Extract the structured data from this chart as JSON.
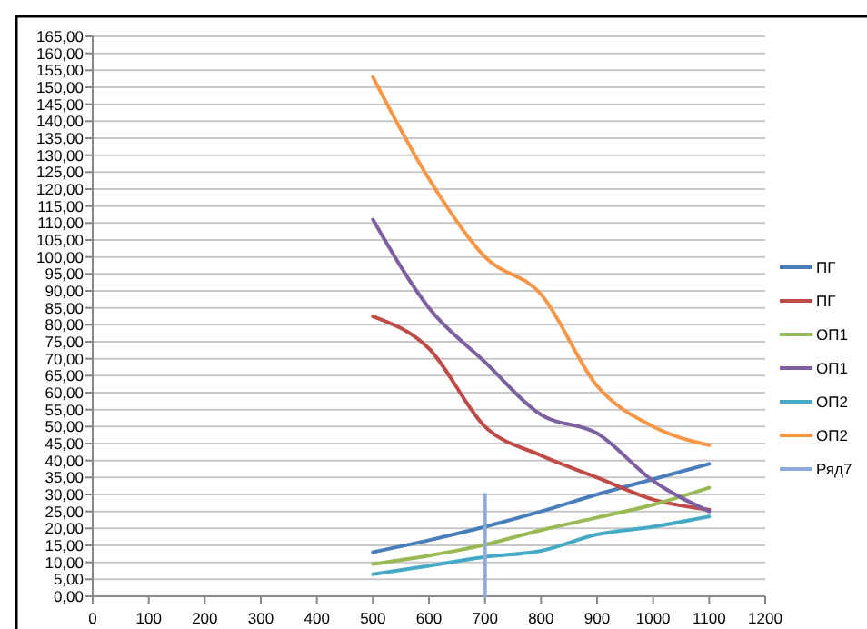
{
  "chart_data": {
    "type": "line",
    "x": [
      500,
      600,
      700,
      800,
      900,
      1000,
      1100
    ],
    "series": [
      {
        "name": "ПГ",
        "color": "#4a7ebb",
        "values": [
          13,
          16.5,
          20.5,
          25,
          30,
          34.5,
          39
        ]
      },
      {
        "name": "ПГ",
        "color": "#be4b48",
        "values": [
          82.5,
          73,
          50,
          41.5,
          35,
          28.5,
          25.5
        ]
      },
      {
        "name": "ОП1",
        "color": "#98b954",
        "values": [
          9.5,
          12,
          15.2,
          19.5,
          23.2,
          27,
          32
        ]
      },
      {
        "name": "ОП1",
        "color": "#7d60a0",
        "values": [
          111,
          85,
          69,
          53.5,
          48,
          34,
          25
        ]
      },
      {
        "name": "ОП2",
        "color": "#46aac5",
        "values": [
          6.5,
          9,
          11.6,
          13.4,
          18.2,
          20.5,
          23.5
        ]
      },
      {
        "name": "ОП2",
        "color": "#f79646",
        "values": [
          153,
          123,
          100,
          89,
          62,
          50,
          44.5
        ]
      },
      {
        "name": "Ряд7",
        "color": "#8eaad8",
        "x": [
          700,
          700
        ],
        "values": [
          0,
          30
        ]
      }
    ],
    "xlim": [
      0,
      1200
    ],
    "xticks": [
      0,
      100,
      200,
      300,
      400,
      500,
      600,
      700,
      800,
      900,
      1000,
      1100,
      1200
    ],
    "ylim": [
      0,
      165
    ],
    "yticks": [
      {
        "value": 0,
        "label": "0,00"
      },
      {
        "value": 5,
        "label": "5,00"
      },
      {
        "value": 10,
        "label": "10,00"
      },
      {
        "value": 15,
        "label": "15,00"
      },
      {
        "value": 20,
        "label": "20,00"
      },
      {
        "value": 25,
        "label": "25,00"
      },
      {
        "value": 30,
        "label": "30,00"
      },
      {
        "value": 35,
        "label": "35,00"
      },
      {
        "value": 40,
        "label": "40,00"
      },
      {
        "value": 45,
        "label": "45,00"
      },
      {
        "value": 50,
        "label": "50,00"
      },
      {
        "value": 55,
        "label": "55,00"
      },
      {
        "value": 60,
        "label": "60,00"
      },
      {
        "value": 65,
        "label": "65,00"
      },
      {
        "value": 70,
        "label": "70,00"
      },
      {
        "value": 75,
        "label": "75,00"
      },
      {
        "value": 80,
        "label": "80,00"
      },
      {
        "value": 85,
        "label": "85,00"
      },
      {
        "value": 90,
        "label": "90,00"
      },
      {
        "value": 95,
        "label": "95,00"
      },
      {
        "value": 100,
        "label": "100,00"
      },
      {
        "value": 105,
        "label": "105,00"
      },
      {
        "value": 110,
        "label": "110,00"
      },
      {
        "value": 115,
        "label": "115,00"
      },
      {
        "value": 120,
        "label": "120,00"
      },
      {
        "value": 125,
        "label": "125,00"
      },
      {
        "value": 130,
        "label": "130,00"
      },
      {
        "value": 135,
        "label": "135,00"
      },
      {
        "value": 140,
        "label": "140,00"
      },
      {
        "value": 145,
        "label": "145,00"
      },
      {
        "value": 150,
        "label": "150,00"
      },
      {
        "value": 155,
        "label": "155,00"
      },
      {
        "value": 160,
        "label": "160,00"
      },
      {
        "value": 165,
        "label": "165,00"
      }
    ],
    "grid": "y",
    "legend": "right",
    "marker": "none",
    "line_style": "solid"
  }
}
